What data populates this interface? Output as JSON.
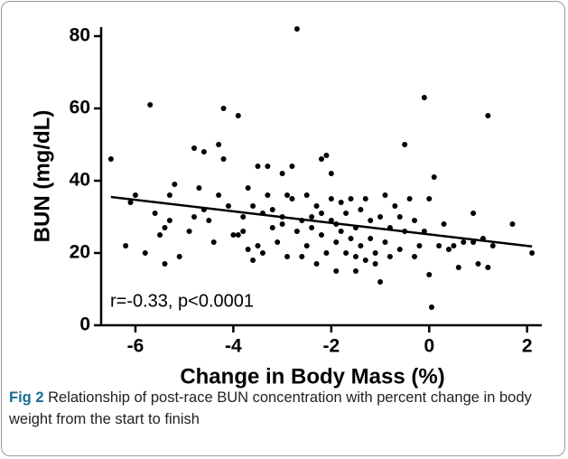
{
  "chart_data": {
    "type": "scatter",
    "x_label": "Change in Body Mass (%)",
    "y_label": "BUN (mg/dL)",
    "annotation": "r=-0.33, p<0.0001",
    "color": "#000000",
    "x": [
      -6.5,
      -6.2,
      -6.1,
      -6.0,
      -5.8,
      -5.7,
      -5.6,
      -5.5,
      -5.4,
      -5.4,
      -5.3,
      -5.3,
      -5.2,
      -5.1,
      -4.9,
      -4.8,
      -4.7,
      -4.6,
      -4.6,
      -4.5,
      -4.4,
      -4.3,
      -4.3,
      -4.2,
      -4.2,
      -4.1,
      -4.0,
      -3.9,
      -3.9,
      -3.8,
      -3.8,
      -3.7,
      -3.6,
      -3.6,
      -3.5,
      -3.5,
      -3.4,
      -3.4,
      -3.3,
      -3.3,
      -3.2,
      -3.1,
      -3.0,
      -3.0,
      -2.9,
      -2.8,
      -2.8,
      -2.7,
      -2.7,
      -2.6,
      -2.6,
      -2.5,
      -2.5,
      -2.4,
      -2.4,
      -2.3,
      -2.3,
      -2.2,
      -2.2,
      -2.1,
      -2.1,
      -2.0,
      -2.0,
      -1.9,
      -1.9,
      -1.8,
      -1.8,
      -1.7,
      -1.7,
      -1.6,
      -1.6,
      -1.5,
      -1.5,
      -1.4,
      -1.4,
      -1.3,
      -1.3,
      -1.2,
      -1.2,
      -1.1,
      -1.0,
      -1.0,
      -0.9,
      -0.9,
      -0.8,
      -0.7,
      -0.6,
      -0.5,
      -0.5,
      -0.4,
      -0.3,
      -0.3,
      -0.2,
      -0.1,
      -0.1,
      0.0,
      0.0,
      0.05,
      0.1,
      0.2,
      0.3,
      0.4,
      0.5,
      0.6,
      0.7,
      0.9,
      0.9,
      1.0,
      1.1,
      1.2,
      1.2,
      1.3,
      1.7,
      2.1,
      -3.0,
      -2.0,
      -1.5,
      -2.9,
      -3.7,
      -4.8,
      -1.1,
      -0.8,
      -2.2,
      -1.9,
      -3.2,
      -0.6
    ],
    "values": [
      46,
      22,
      34,
      36,
      20,
      61,
      31,
      25,
      27,
      17,
      29,
      36,
      39,
      19,
      26,
      49,
      38,
      32,
      48,
      29,
      23,
      36,
      50,
      60,
      46,
      33,
      25,
      58,
      25,
      26,
      30,
      38,
      18,
      33,
      44,
      22,
      20,
      31,
      36,
      44,
      27,
      23,
      42,
      30,
      19,
      44,
      35,
      26,
      82,
      29,
      19,
      36,
      22,
      27,
      30,
      33,
      17,
      25,
      46,
      47,
      20,
      29,
      42,
      15,
      23,
      34,
      26,
      31,
      20,
      35,
      24,
      27,
      15,
      32,
      22,
      35,
      18,
      29,
      24,
      20,
      12,
      30,
      36,
      23,
      27,
      33,
      21,
      50,
      26,
      35,
      19,
      29,
      22,
      63,
      26,
      35,
      14,
      5,
      41,
      22,
      28,
      21,
      22,
      16,
      23,
      31,
      23,
      17,
      24,
      58,
      16,
      22,
      28,
      20,
      28,
      35,
      19,
      36,
      21,
      30,
      17,
      19,
      31,
      28,
      32,
      30
    ],
    "fit": {
      "x": [
        -6.5,
        2.1
      ],
      "values": [
        35.5,
        21.8
      ]
    },
    "xlim": [
      -6.7,
      2.3
    ],
    "ylim": [
      0,
      82.5
    ],
    "xticks": [
      -6,
      -4,
      -2,
      0,
      2
    ],
    "yticks": [
      0,
      20,
      40,
      60,
      80
    ]
  },
  "caption": {
    "label": "Fig 2",
    "text": "Relationship of post-race BUN concentration with percent change in body weight from the start to finish"
  }
}
